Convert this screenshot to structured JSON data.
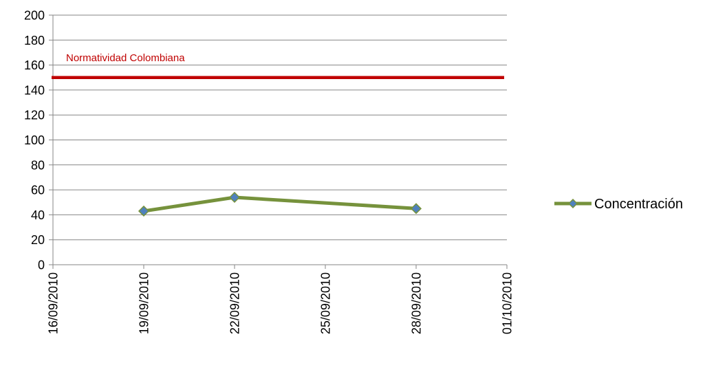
{
  "chart_data": {
    "type": "line",
    "title": "",
    "xlabel": "",
    "ylabel": "",
    "x_ticks": [
      "16/09/2010",
      "19/09/2010",
      "22/09/2010",
      "25/09/2010",
      "28/09/2010",
      "01/10/2010"
    ],
    "xlim": [
      "16/09/2010",
      "01/10/2010"
    ],
    "ylim": [
      0,
      200
    ],
    "y_ticks": [
      0,
      20,
      40,
      60,
      80,
      100,
      120,
      140,
      160,
      180,
      200
    ],
    "grid": true,
    "series": [
      {
        "name": "Concentración",
        "color": "#76923c",
        "marker_color": "#4f81bd",
        "marker": "diamond",
        "x": [
          "19/09/2010",
          "22/09/2010",
          "28/09/2010"
        ],
        "y": [
          43,
          54,
          45
        ]
      }
    ],
    "reference_line": {
      "label": "Normatividad Colombiana",
      "value": 150,
      "color": "#c00000"
    },
    "legend": {
      "position": "right",
      "entries": [
        "Concentración"
      ]
    }
  }
}
